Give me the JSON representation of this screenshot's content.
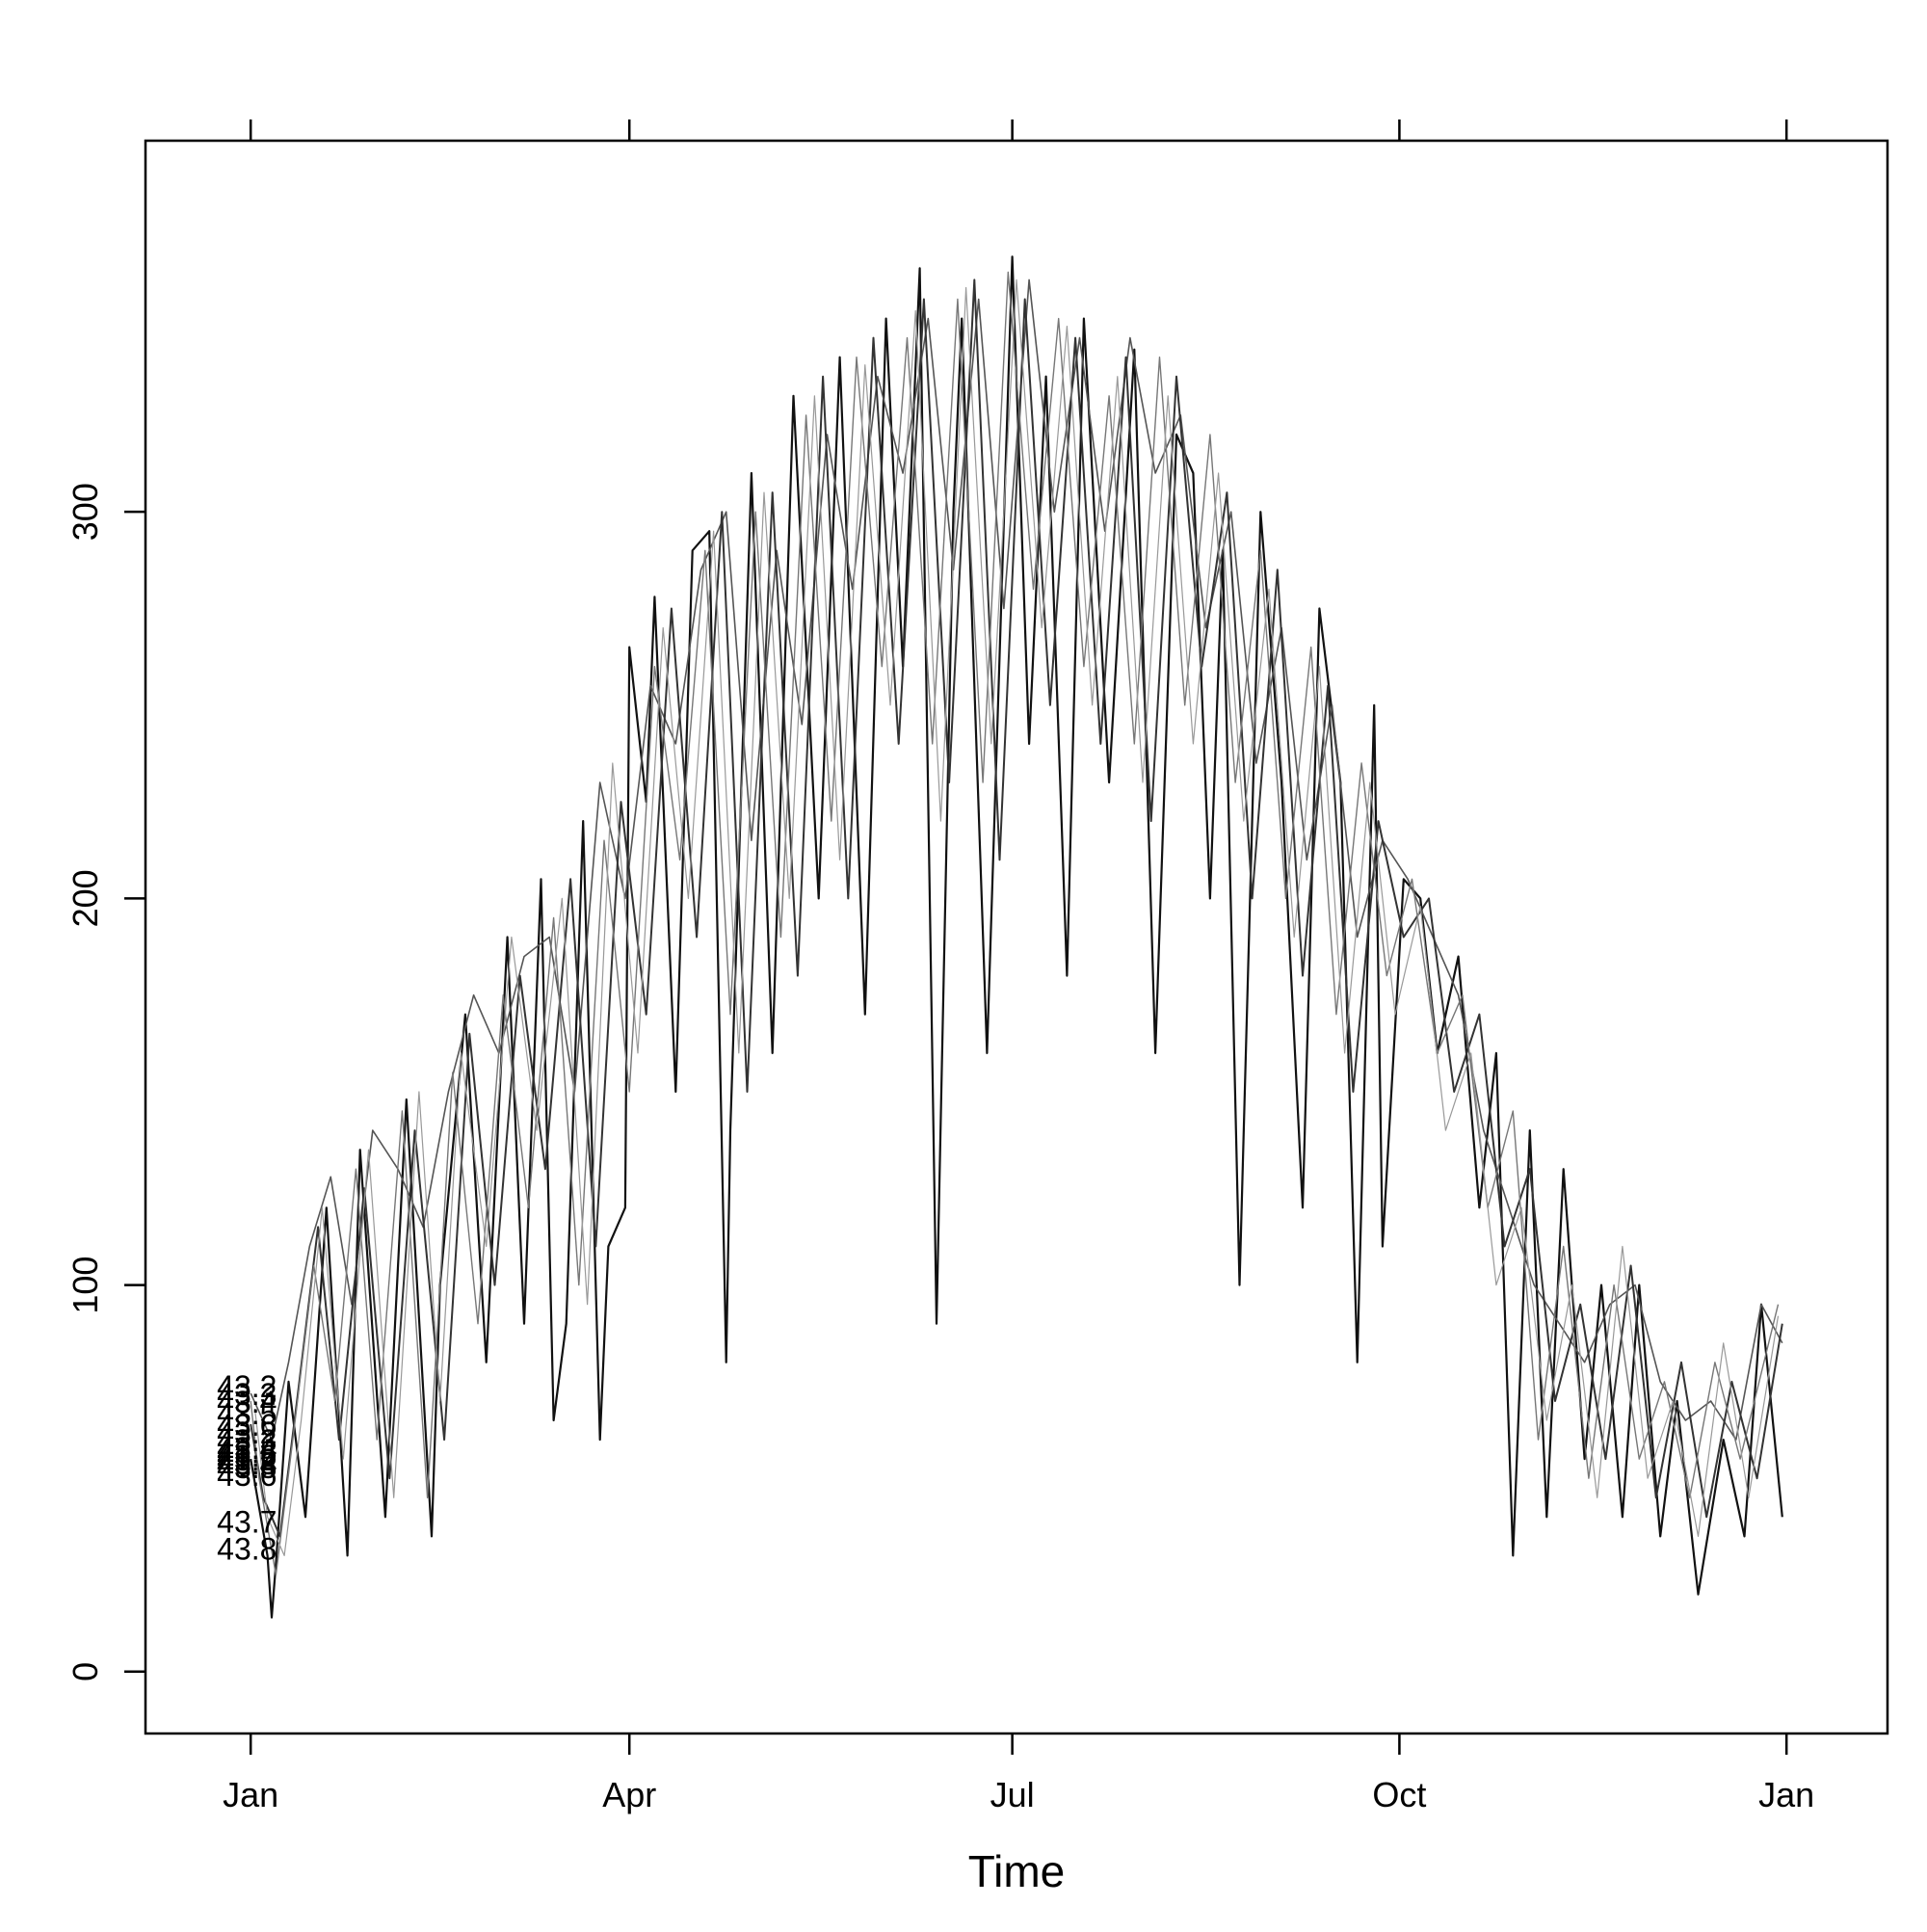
{
  "chart_data": {
    "type": "line",
    "title": "",
    "xlabel": "Time",
    "ylabel": "",
    "x_ticks": [
      "Jan",
      "Apr",
      "Jul",
      "Oct",
      "Jan"
    ],
    "x_tick_days": [
      1,
      91,
      182,
      274,
      366
    ],
    "xlim_days": [
      -24,
      390
    ],
    "y_ticks": [
      "0",
      "100",
      "200",
      "300"
    ],
    "y_tick_values": [
      0,
      100,
      200,
      300
    ],
    "ylim": [
      -16,
      396
    ],
    "grid": false,
    "legend": "none",
    "series_labels": [
      "43.2",
      "43.3",
      "43.4",
      "43.5",
      "43.6",
      "43.2",
      "43.3",
      "43.4",
      "43.5",
      "43.6",
      "43.2",
      "43.3",
      "43.4",
      "43.5",
      "43.6",
      "43.7",
      "43.8"
    ],
    "label_values": [
      74,
      72,
      70,
      67,
      64,
      62,
      60,
      58,
      57,
      56,
      55,
      54,
      54,
      53,
      51,
      39,
      32
    ],
    "series": [
      {
        "name": "43.8",
        "x": [
          1,
          5,
          6,
          7,
          10,
          14,
          19,
          24,
          27,
          33,
          38,
          44,
          46,
          52,
          57,
          62,
          66,
          70,
          73,
          76,
          80,
          84,
          86,
          90,
          91,
          95,
          97,
          102,
          106,
          110,
          114,
          115,
          120,
          125,
          130,
          136,
          141,
          147,
          152,
          156,
          160,
          164,
          168,
          170,
          176,
          182,
          186,
          190,
          195,
          199,
          205,
          211,
          216,
          221,
          225,
          229,
          232,
          236,
          241,
          246,
          251,
          255,
          260,
          264,
          268,
          270,
          275,
          279,
          283,
          288,
          293,
          297,
          301,
          305,
          309,
          313,
          318,
          322,
          327,
          331,
          336,
          340,
          345,
          351,
          356,
          360,
          365
        ],
        "y": [
          55,
          30,
          14,
          28,
          75,
          40,
          120,
          30,
          135,
          40,
          148,
          35,
          100,
          170,
          80,
          190,
          90,
          205,
          65,
          90,
          220,
          60,
          110,
          120,
          265,
          225,
          278,
          150,
          290,
          295,
          80,
          140,
          310,
          160,
          330,
          200,
          340,
          170,
          350,
          260,
          363,
          90,
          300,
          350,
          160,
          366,
          240,
          335,
          180,
          350,
          230,
          342,
          160,
          320,
          310,
          200,
          290,
          100,
          300,
          230,
          120,
          275,
          230,
          80,
          250,
          110,
          205,
          200,
          160,
          185,
          120,
          160,
          30,
          140,
          40,
          130,
          55,
          100,
          40,
          100,
          35,
          70,
          20,
          60,
          35,
          95,
          40
        ]
      },
      {
        "name": "43.2",
        "x": [
          1,
          6,
          10,
          15,
          20,
          25,
          30,
          36,
          42,
          48,
          54,
          60,
          66,
          72,
          78,
          84,
          90,
          96,
          102,
          108,
          114,
          120,
          126,
          132,
          138,
          144,
          150,
          156,
          162,
          168,
          174,
          180,
          186,
          192,
          198,
          204,
          210,
          216,
          222,
          228,
          234,
          240,
          246,
          252,
          258,
          264,
          270,
          276,
          282,
          288,
          294,
          300,
          306,
          312,
          318,
          324,
          330,
          336,
          342,
          348,
          354,
          360,
          365
        ],
        "y": [
          72,
          60,
          80,
          110,
          128,
          95,
          140,
          130,
          115,
          150,
          175,
          160,
          185,
          190,
          150,
          230,
          200,
          255,
          240,
          285,
          300,
          215,
          290,
          245,
          320,
          280,
          335,
          310,
          350,
          285,
          355,
          275,
          360,
          300,
          345,
          295,
          345,
          310,
          325,
          270,
          300,
          235,
          270,
          210,
          250,
          190,
          215,
          205,
          190,
          175,
          140,
          120,
          100,
          90,
          80,
          95,
          100,
          75,
          65,
          70,
          60,
          95,
          85
        ]
      },
      {
        "name": "43.5",
        "x": [
          1,
          4,
          8,
          12,
          17,
          22,
          28,
          34,
          40,
          47,
          53,
          59,
          65,
          71,
          77,
          83,
          89,
          95,
          101,
          107,
          113,
          119,
          125,
          131,
          137,
          143,
          149,
          155,
          161,
          167,
          173,
          179,
          185,
          191,
          197,
          203,
          209,
          215,
          221,
          227,
          233,
          239,
          245,
          251,
          257,
          263,
          269,
          275,
          281,
          287,
          293,
          299,
          305,
          311,
          317,
          323,
          329,
          335,
          341,
          347,
          353,
          359,
          365
        ],
        "y": [
          64,
          45,
          35,
          70,
          115,
          60,
          125,
          50,
          140,
          60,
          165,
          100,
          180,
          130,
          205,
          110,
          225,
          170,
          275,
          190,
          300,
          150,
          305,
          180,
          335,
          200,
          345,
          240,
          355,
          230,
          360,
          210,
          355,
          250,
          345,
          240,
          340,
          220,
          335,
          260,
          305,
          200,
          285,
          180,
          255,
          150,
          220,
          190,
          200,
          150,
          170,
          110,
          130,
          70,
          95,
          55,
          105,
          45,
          80,
          40,
          75,
          50,
          90
        ]
      },
      {
        "name": "43.3",
        "x": [
          1,
          3,
          7,
          11,
          16,
          21,
          26,
          31,
          37,
          43,
          49,
          55,
          61,
          67,
          73,
          79,
          85,
          91,
          97,
          103,
          109,
          115,
          121,
          127,
          133,
          139,
          145,
          151,
          157,
          163,
          169,
          175,
          181,
          187,
          193,
          199,
          205,
          211,
          217,
          223,
          229,
          235,
          241,
          247,
          253,
          259,
          265,
          271,
          277,
          283,
          289,
          295,
          301,
          307,
          313,
          319,
          325,
          331,
          337,
          343,
          349,
          355,
          364
        ],
        "y": [
          70,
          50,
          25,
          60,
          105,
          70,
          130,
          60,
          145,
          45,
          155,
          90,
          175,
          120,
          195,
          100,
          215,
          150,
          260,
          210,
          290,
          170,
          300,
          190,
          325,
          220,
          340,
          260,
          345,
          240,
          355,
          230,
          362,
          280,
          350,
          260,
          330,
          240,
          340,
          250,
          320,
          230,
          290,
          200,
          265,
          170,
          235,
          180,
          205,
          160,
          175,
          120,
          145,
          60,
          110,
          50,
          100,
          55,
          75,
          45,
          80,
          55,
          95
        ]
      },
      {
        "name": "43.4",
        "x": [
          2,
          5,
          9,
          13,
          18,
          23,
          29,
          35,
          41,
          46,
          51,
          57,
          63,
          69,
          75,
          81,
          87,
          93,
          99,
          105,
          111,
          117,
          123,
          129,
          135,
          141,
          147,
          153,
          159,
          165,
          171,
          177,
          183,
          189,
          195,
          201,
          207,
          213,
          219,
          225,
          231,
          237,
          243,
          249,
          255,
          261,
          267,
          273,
          279,
          285,
          291,
          297,
          303,
          309,
          315,
          321,
          327,
          333,
          339,
          345,
          351,
          357,
          364
        ],
        "y": [
          68,
          40,
          30,
          65,
          120,
          55,
          135,
          45,
          150,
          70,
          160,
          110,
          190,
          140,
          200,
          95,
          235,
          160,
          270,
          200,
          295,
          160,
          305,
          200,
          330,
          210,
          338,
          250,
          352,
          220,
          358,
          240,
          360,
          270,
          348,
          250,
          335,
          230,
          330,
          240,
          310,
          220,
          280,
          190,
          260,
          160,
          230,
          170,
          198,
          140,
          160,
          100,
          120,
          65,
          100,
          45,
          110,
          50,
          70,
          35,
          85,
          45,
          92
        ]
      }
    ]
  }
}
